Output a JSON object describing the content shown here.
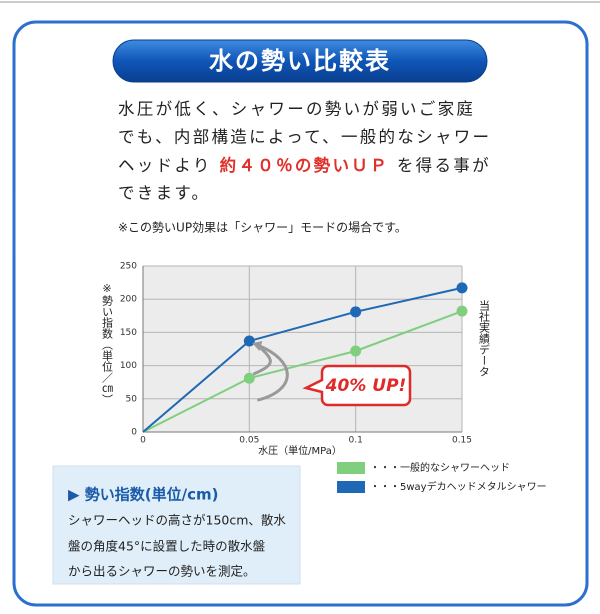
{
  "header": {
    "title": "水の勢い比較表"
  },
  "intro": {
    "line1": "水圧が低く、シャワーの勢いが弱いご家庭",
    "line2": "でも、内部構造によって、一般的なシャワー",
    "line3_before": "ヘッドより",
    "line3_highlight": "約４０％の勢いＵＰ",
    "line3_after": "を得る事が",
    "line4": "できます。"
  },
  "note": "※この勢いUP効果は「シャワー」モードの場合です。",
  "chart_data": {
    "type": "line",
    "y_label": "※勢い指数（単位／㎝）",
    "x_label": "水圧（単位/MPa）",
    "side_note": "当社実績データ",
    "annotation": "40% UP!",
    "x": [
      0,
      0.05,
      0.1,
      0.15
    ],
    "xlim": [
      0,
      0.15
    ],
    "xticks": [
      0,
      0.05,
      0.1,
      0.15
    ],
    "ylim": [
      0,
      250
    ],
    "yticks": [
      0,
      50,
      100,
      150,
      200,
      250
    ],
    "grid": true,
    "series": [
      {
        "name": "・・・一般的なシャワーヘッド",
        "color": "#7fcf7f",
        "values": [
          0,
          81,
          122,
          182
        ]
      },
      {
        "name": "・・・5wayデカヘッドメタルシャワー",
        "color": "#1f68b5",
        "values": [
          0,
          137,
          181,
          217
        ]
      }
    ]
  },
  "info_box": {
    "heading": "▶ 勢い指数(単位/cm)",
    "line1": "シャワーヘッドの高さが150cm、散水",
    "line2": "盤の角度45°に設置した時の散水盤",
    "line3": "から出るシャワーの勢いを測定。"
  }
}
